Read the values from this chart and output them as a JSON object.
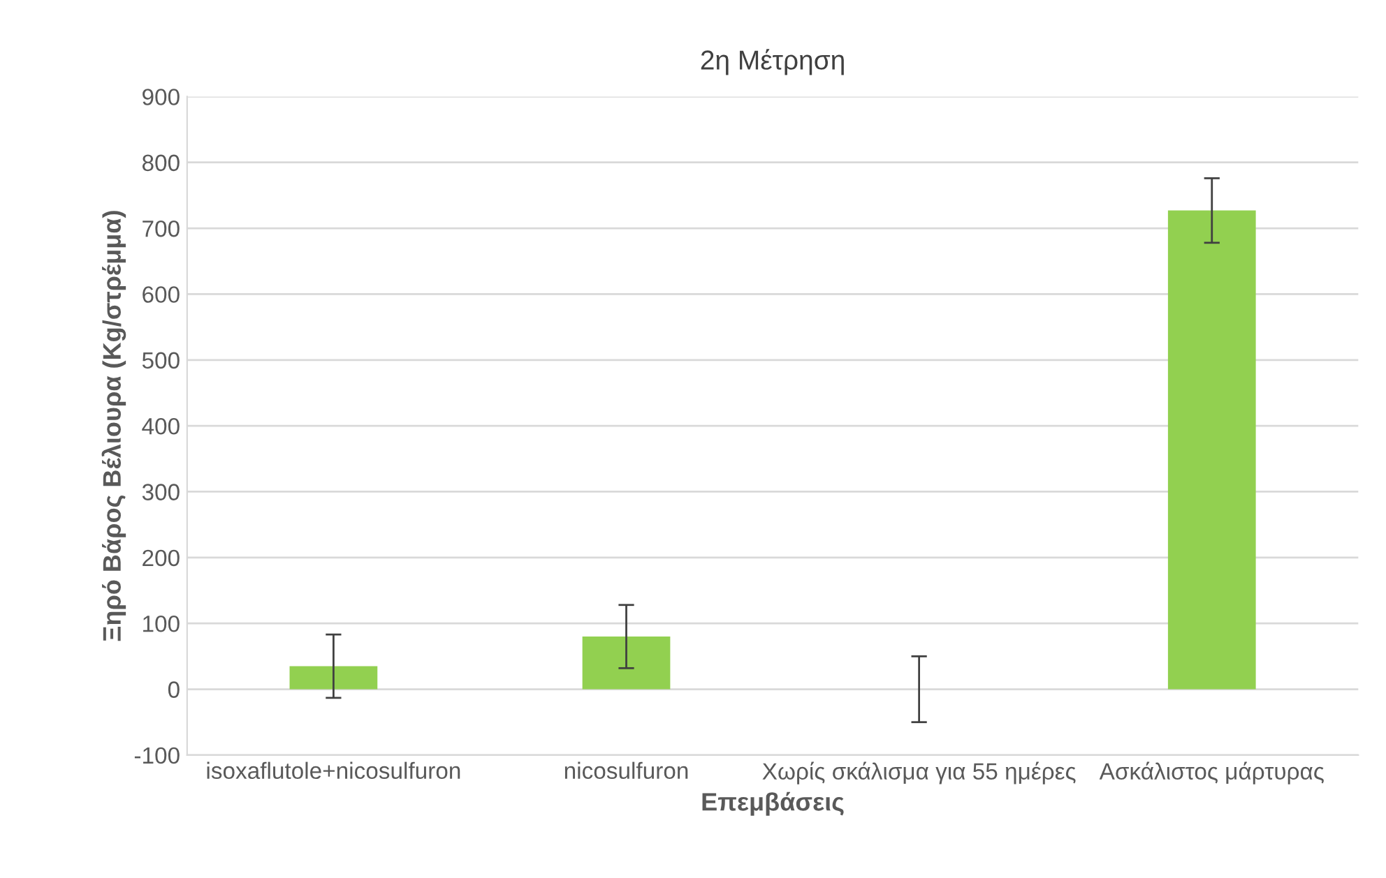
{
  "chart_data": {
    "type": "bar",
    "title": "2η Μέτρηση",
    "xlabel": "Επεμβάσεις",
    "ylabel": "Ξηρό Βάρος Βέλιουρα (Kg/στρέμμα)",
    "categories": [
      "isoxaflutole+nicosulfuron",
      "nicosulfuron",
      "Χωρίς σκάλισμα για 55 ημέρες",
      "Ασκάλιστος μάρτυρας"
    ],
    "values": [
      35,
      80,
      0,
      727
    ],
    "errors": [
      48,
      48,
      50,
      49
    ],
    "color": "#92d050",
    "ylim": [
      -100,
      900
    ],
    "yticks": [
      -100,
      0,
      100,
      200,
      300,
      400,
      500,
      600,
      700,
      800,
      900
    ],
    "grid": "y",
    "legend": false
  }
}
